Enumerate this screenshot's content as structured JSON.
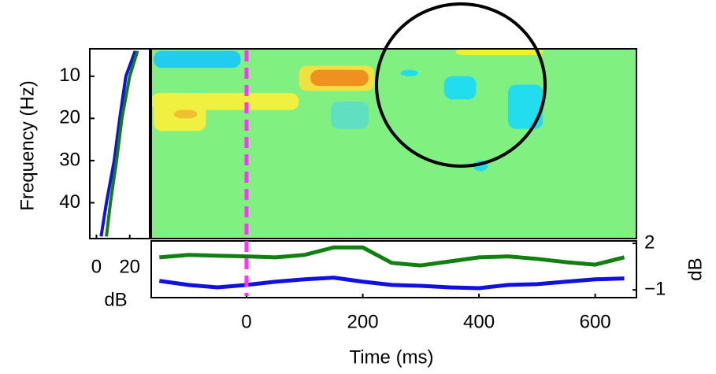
{
  "chart_data": [
    {
      "type": "heatmap",
      "ylabel": "Frequency (Hz)",
      "background": "#80f080",
      "xlim": [
        -164,
        671
      ],
      "ylim": [
        3.5,
        48.5
      ],
      "yticks": [
        10,
        20,
        30,
        40
      ],
      "vline": 0,
      "vline_color": "#ff33ff",
      "regions": [
        {
          "x": [
            -160,
            -10
          ],
          "y": [
            4,
            8
          ],
          "color": "#22ccee"
        },
        {
          "x": [
            -164,
            90
          ],
          "y": [
            14,
            18
          ],
          "color": "#f0f040"
        },
        {
          "x": [
            -160,
            -70
          ],
          "y": [
            14,
            23
          ],
          "color": "#f0f040"
        },
        {
          "x": [
            -125,
            -85
          ],
          "y": [
            18,
            20
          ],
          "color": "#f0c030"
        },
        {
          "x": [
            90,
            220
          ],
          "y": [
            7.5,
            13.5
          ],
          "color": "#f0e040"
        },
        {
          "x": [
            110,
            210
          ],
          "y": [
            8.5,
            12.3
          ],
          "color": "#f09020"
        },
        {
          "x": [
            145,
            210
          ],
          "y": [
            16,
            22.5
          ],
          "color": "#60e0c0"
        },
        {
          "x": [
            265,
            295
          ],
          "y": [
            8.5,
            10
          ],
          "color": "#22ddee"
        },
        {
          "x": [
            340,
            395
          ],
          "y": [
            10,
            15.5
          ],
          "color": "#22ddee"
        },
        {
          "x": [
            450,
            510
          ],
          "y": [
            12,
            22.5
          ],
          "color": "#22ddee"
        },
        {
          "x": [
            360,
            510
          ],
          "y": [
            3.5,
            5
          ],
          "color": "#eef030"
        },
        {
          "x": [
            390,
            415
          ],
          "y": [
            30,
            32.5
          ],
          "color": "#22ddee"
        }
      ]
    },
    {
      "type": "line",
      "xlabel": "dB",
      "xlim": [
        -4,
        32
      ],
      "xticks": [
        0,
        20
      ],
      "ylim": [
        3.5,
        48.5
      ],
      "y": [
        4,
        10,
        20,
        30,
        40,
        48
      ],
      "series": [
        {
          "color": "#1010e0",
          "values": [
            23.3,
            17.7,
            14,
            10.7,
            6,
            2.8
          ]
        },
        {
          "color": "#108010",
          "values": [
            24.7,
            20,
            15.3,
            12.1,
            8.4,
            6
          ]
        }
      ]
    },
    {
      "type": "line",
      "xlabel": "Time (ms)",
      "xlim": [
        -164,
        671
      ],
      "xticks": [
        0,
        200,
        400,
        600
      ],
      "y2label": "dB",
      "y2lim": [
        -1.5,
        2.16
      ],
      "y2ticks": [
        {
          "value": -1,
          "label": "−1"
        },
        2
      ],
      "x": [
        -150,
        -100,
        -50,
        0,
        50,
        100,
        150,
        200,
        250,
        300,
        350,
        400,
        450,
        500,
        550,
        600,
        650
      ],
      "series": [
        {
          "color": "#108010",
          "axis": "y2",
          "values": [
            1.1,
            1.26,
            1.21,
            1.16,
            1.1,
            1.26,
            1.74,
            1.74,
            0.74,
            0.58,
            0.84,
            1.1,
            1.16,
            1.0,
            0.79,
            0.63,
            1.1
          ]
        },
        {
          "color": "#1010e0",
          "axis": "y2",
          "values": [
            -0.42,
            -0.68,
            -0.84,
            -0.68,
            -0.47,
            -0.32,
            -0.21,
            -0.47,
            -0.68,
            -0.74,
            -0.84,
            -0.89,
            -0.68,
            -0.63,
            -0.47,
            -0.32,
            -0.26
          ]
        }
      ]
    }
  ]
}
